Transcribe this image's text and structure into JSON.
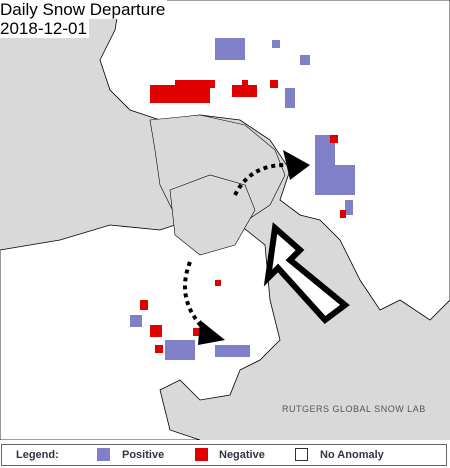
{
  "map": {
    "title": "Daily Snow Departure",
    "date": "2018-12-01",
    "credit": "RUTGERS GLOBAL SNOW LAB"
  },
  "legend": {
    "title": "Legend:",
    "items": [
      "Positive",
      "Negative",
      "No Anomaly"
    ]
  }
}
